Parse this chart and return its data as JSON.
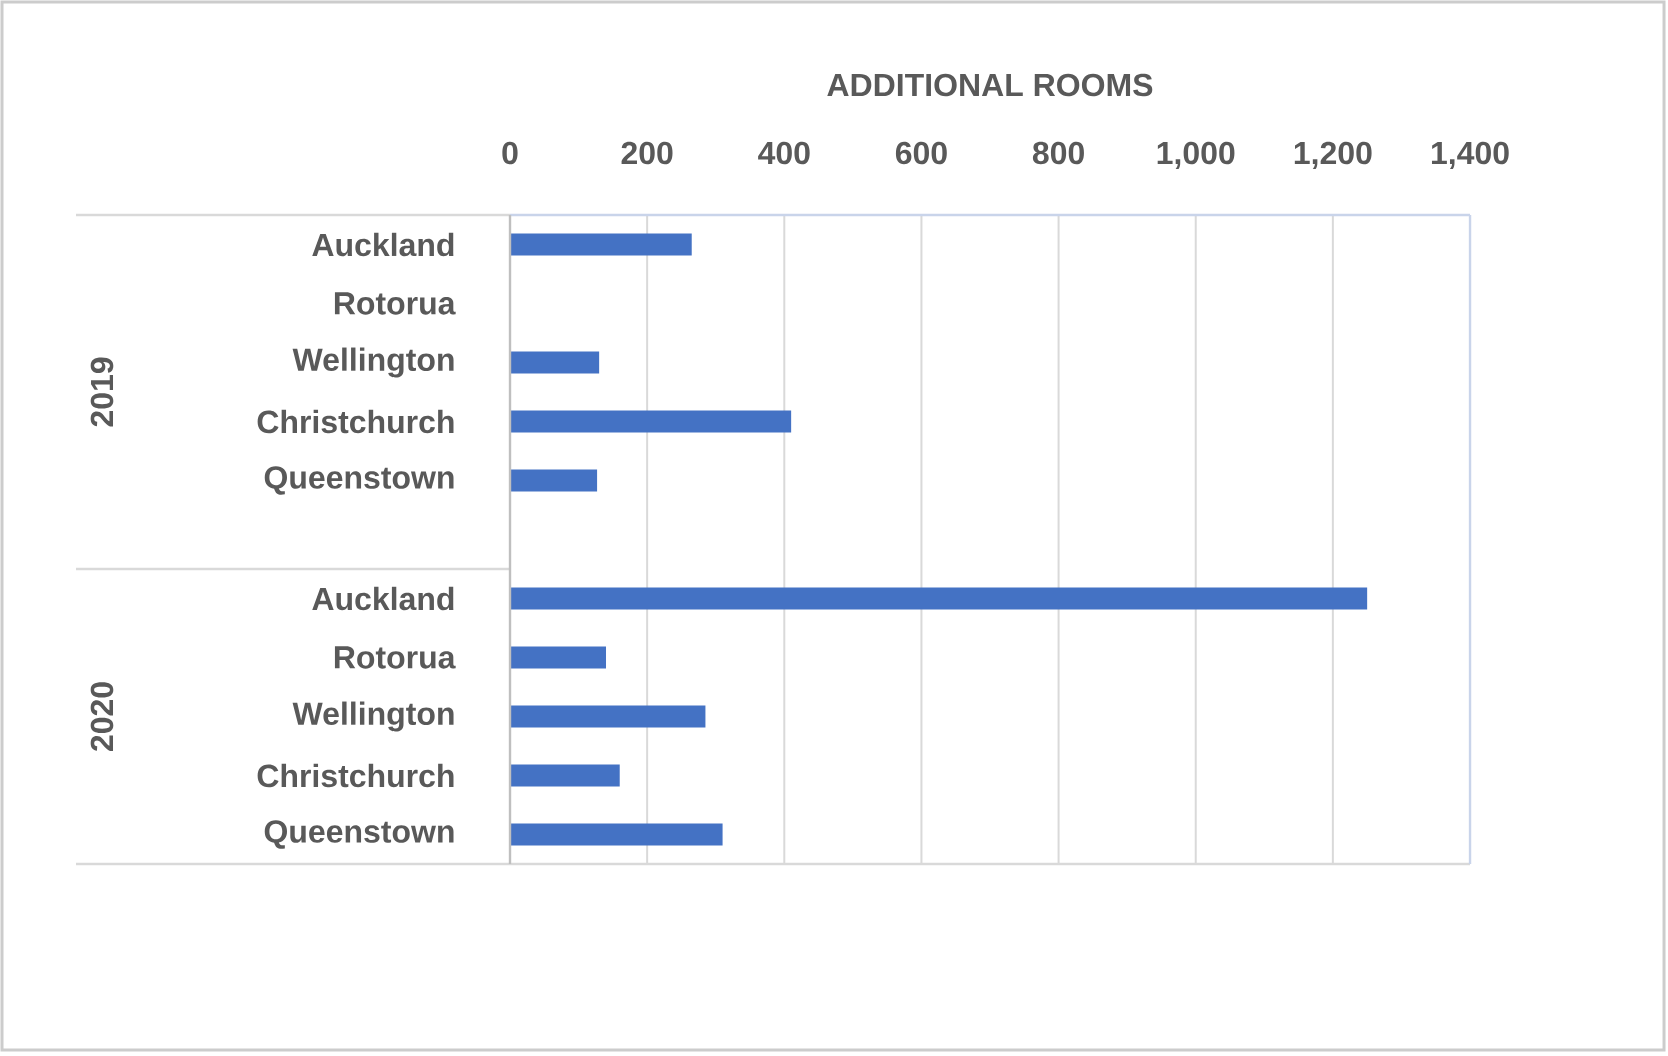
{
  "chart_data": [
    {
      "type": "bar",
      "orientation": "horizontal",
      "xlabel": "ADDITIONAL ROOMS",
      "ylabel": "2019",
      "categories": [
        "Auckland",
        "Rotorua",
        "Wellington",
        "Christchurch",
        "Queenstown"
      ],
      "values": [
        265,
        null,
        130,
        410,
        127
      ],
      "color": "#4472c4",
      "xlim": [
        0,
        1400
      ],
      "xticks": [
        0,
        200,
        400,
        600,
        800,
        {
          "value": 1000,
          "label": "1,000"
        },
        {
          "value": 1200,
          "label": "1,200"
        },
        {
          "value": 1400,
          "label": "1,400"
        }
      ],
      "grid": "x"
    },
    {
      "type": "bar",
      "orientation": "horizontal",
      "ylabel": "2020",
      "categories": [
        "Auckland",
        "Rotorua",
        "Wellington",
        "Christchurch",
        "Queenstown"
      ],
      "values": [
        1250,
        140,
        285,
        160,
        310
      ],
      "color": "#4472c4",
      "xlim": [
        0,
        1400
      ],
      "xticks": [
        0,
        200,
        400,
        600,
        800,
        1000,
        1200,
        1400
      ],
      "grid": "x",
      "tick_labels": "y"
    }
  ]
}
